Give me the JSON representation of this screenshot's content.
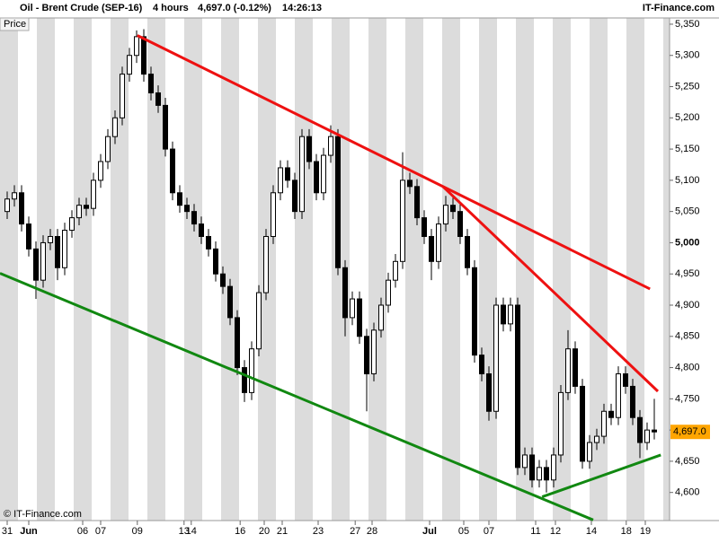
{
  "chart_data": {
    "type": "candlestick",
    "title": "Oil - Brent Crude (SEP-16)",
    "interval": "4 hours",
    "quote": "4,697.0 (-0.12%)",
    "time": "14:26:13",
    "brand": "IT-Finance.com",
    "panel_label": "Price",
    "copyright": "© IT-Finance.com",
    "x": [
      1,
      2,
      3,
      4,
      5,
      6,
      7,
      8,
      9,
      10,
      11,
      12,
      13,
      14,
      15,
      16,
      17,
      18,
      19,
      20,
      21,
      22,
      23,
      24,
      25,
      26,
      27,
      28,
      29,
      30,
      31,
      32,
      33,
      34,
      35,
      36,
      37,
      38,
      39,
      40,
      41,
      42,
      43,
      44,
      45,
      46,
      47,
      48,
      49,
      50,
      51,
      52,
      53,
      54,
      55,
      56,
      57,
      58,
      59,
      60,
      61,
      62,
      63,
      64,
      65,
      66,
      67,
      68,
      69,
      70,
      71,
      72,
      73,
      74,
      75,
      76,
      77,
      78,
      79,
      80,
      81,
      82,
      83,
      84,
      85,
      86,
      87,
      88,
      89,
      90,
      91
    ],
    "open": [
      5050,
      5070,
      5080,
      5030,
      4990,
      4940,
      5000,
      5010,
      4960,
      5020,
      5040,
      5060,
      5055,
      5100,
      5130,
      5170,
      5200,
      5270,
      5300,
      5330,
      5270,
      5240,
      5220,
      5150,
      5080,
      5060,
      5050,
      5030,
      5010,
      4990,
      4950,
      4930,
      4880,
      4800,
      4760,
      4830,
      4920,
      5010,
      5080,
      5120,
      5100,
      5050,
      5170,
      5130,
      5080,
      5140,
      5170,
      4960,
      4880,
      4910,
      4850,
      4790,
      4860,
      4900,
      4940,
      4970,
      5100,
      5090,
      5040,
      5010,
      4970,
      5030,
      5060,
      5050,
      5010,
      4960,
      4820,
      4790,
      4730,
      4900,
      4870,
      4900,
      4640,
      4660,
      4620,
      4640,
      4620,
      4660,
      4760,
      4830,
      4770,
      4650,
      4680,
      4690,
      4730,
      4720,
      4790,
      4770,
      4720,
      4680,
      4700
    ],
    "high": [
      5082,
      5092,
      5092,
      5042,
      5002,
      5012,
      5022,
      5022,
      5032,
      5052,
      5072,
      5072,
      5112,
      5142,
      5182,
      5212,
      5282,
      5312,
      5340,
      5342,
      5282,
      5252,
      5232,
      5162,
      5092,
      5072,
      5062,
      5042,
      5022,
      5002,
      4962,
      4942,
      4892,
      4812,
      4842,
      4932,
      5022,
      5092,
      5132,
      5132,
      5112,
      5182,
      5182,
      5142,
      5152,
      5188,
      5182,
      4972,
      4922,
      4922,
      4862,
      4872,
      4912,
      4952,
      4982,
      5145,
      5112,
      5102,
      5052,
      5022,
      5042,
      5075,
      5072,
      5062,
      5022,
      4972,
      4832,
      4802,
      4912,
      4912,
      4912,
      4912,
      4672,
      4672,
      4652,
      4652,
      4672,
      4772,
      4860,
      4842,
      4782,
      4692,
      4702,
      4742,
      4742,
      4802,
      4802,
      4782,
      4732,
      4712,
      4750
    ],
    "low": [
      5038,
      5058,
      5018,
      4978,
      4910,
      4928,
      4988,
      4940,
      4948,
      5008,
      5028,
      5043,
      5043,
      5088,
      5118,
      5158,
      5188,
      5258,
      5288,
      5258,
      5228,
      5208,
      5138,
      5068,
      5048,
      5038,
      5018,
      4998,
      4978,
      4938,
      4918,
      4868,
      4788,
      4745,
      4748,
      4818,
      4908,
      4998,
      5068,
      5088,
      5038,
      5038,
      5118,
      5068,
      5068,
      5128,
      4948,
      4850,
      4868,
      4838,
      4730,
      4778,
      4848,
      4888,
      4928,
      4958,
      5078,
      5028,
      4998,
      4940,
      4958,
      5018,
      5038,
      4998,
      4948,
      4808,
      4778,
      4715,
      4718,
      4858,
      4858,
      4628,
      4628,
      4608,
      4608,
      4600,
      4608,
      4648,
      4748,
      4758,
      4638,
      4638,
      4668,
      4678,
      4708,
      4708,
      4758,
      4708,
      4655,
      4668,
      4685
    ],
    "close": [
      5070,
      5080,
      5030,
      4990,
      4940,
      5000,
      5010,
      4960,
      5020,
      5040,
      5060,
      5055,
      5100,
      5130,
      5170,
      5200,
      5270,
      5300,
      5330,
      5270,
      5240,
      5220,
      5150,
      5080,
      5060,
      5050,
      5030,
      5010,
      4990,
      4950,
      4930,
      4880,
      4800,
      4760,
      4830,
      4920,
      5010,
      5080,
      5120,
      5100,
      5050,
      5170,
      5130,
      5080,
      5140,
      5170,
      4960,
      4880,
      4910,
      4850,
      4790,
      4860,
      4900,
      4940,
      4970,
      5100,
      5090,
      5040,
      5010,
      4970,
      5030,
      5060,
      5050,
      5010,
      4960,
      4820,
      4790,
      4730,
      4900,
      4870,
      4900,
      4640,
      4660,
      4620,
      4640,
      4620,
      4660,
      4760,
      4830,
      4770,
      4650,
      4680,
      4690,
      4730,
      4720,
      4790,
      4770,
      4720,
      4680,
      4700,
      4697
    ],
    "color": "#000000",
    "xlim": [
      0,
      92.5
    ],
    "xticks": [
      {
        "value": 1,
        "label": "31"
      },
      {
        "value": 4,
        "label": "Jun"
      },
      {
        "value": 11.5,
        "label": "06"
      },
      {
        "value": 14,
        "label": "07"
      },
      {
        "value": 19.1,
        "label": "09"
      },
      {
        "value": 25.6,
        "label": "13"
      },
      {
        "value": 26.6,
        "label": "14"
      },
      {
        "value": 33.4,
        "label": "16"
      },
      {
        "value": 36.75,
        "label": "20"
      },
      {
        "value": 39.25,
        "label": "21"
      },
      {
        "value": 44.25,
        "label": "23"
      },
      {
        "value": 49.4,
        "label": "27"
      },
      {
        "value": 51.75,
        "label": "28"
      },
      {
        "value": 59.75,
        "label": "Jul"
      },
      {
        "value": 64.5,
        "label": "05"
      },
      {
        "value": 68,
        "label": "07"
      },
      {
        "value": 74.5,
        "label": "11"
      },
      {
        "value": 77.25,
        "label": "12"
      },
      {
        "value": 82.25,
        "label": "14"
      },
      {
        "value": 87.1,
        "label": "18"
      },
      {
        "value": 89.75,
        "label": "19"
      }
    ],
    "ylim": [
      4555,
      5360
    ],
    "yticks": [
      {
        "value": 4600,
        "label": "4,600"
      },
      {
        "value": 4650,
        "label": "4,650"
      },
      {
        "value": 4700,
        "label": "4,700"
      },
      {
        "value": 4750,
        "label": "4,750"
      },
      {
        "value": 4800,
        "label": "4,800"
      },
      {
        "value": 4850,
        "label": "4,850"
      },
      {
        "value": 4900,
        "label": "4,900"
      },
      {
        "value": 4950,
        "label": "4,950"
      },
      {
        "value": 5000,
        "label": "5,000"
      },
      {
        "value": 5050,
        "label": "5,050"
      },
      {
        "value": 5100,
        "label": "5,100"
      },
      {
        "value": 5150,
        "label": "5,150"
      },
      {
        "value": 5200,
        "label": "5,200"
      },
      {
        "value": 5250,
        "label": "5,250"
      },
      {
        "value": 5300,
        "label": "5,300"
      },
      {
        "value": 5350,
        "label": "5,350"
      }
    ],
    "last_price": {
      "value": 4697,
      "label": "4,697.0",
      "color": "#ffa500"
    },
    "trendlines": [
      {
        "color": "#ee1111",
        "x": [
          19.1,
          90.4
        ],
        "y": [
          5332,
          4926
        ]
      },
      {
        "color": "#ee1111",
        "x": [
          61.6,
          91.5
        ],
        "y": [
          5090,
          4762
        ]
      },
      {
        "color": "#118811",
        "x": [
          0,
          82.5
        ],
        "y": [
          4951,
          4556
        ]
      },
      {
        "color": "#118811",
        "x": [
          75.4,
          91.9
        ],
        "y": [
          4593,
          4660
        ]
      }
    ]
  }
}
